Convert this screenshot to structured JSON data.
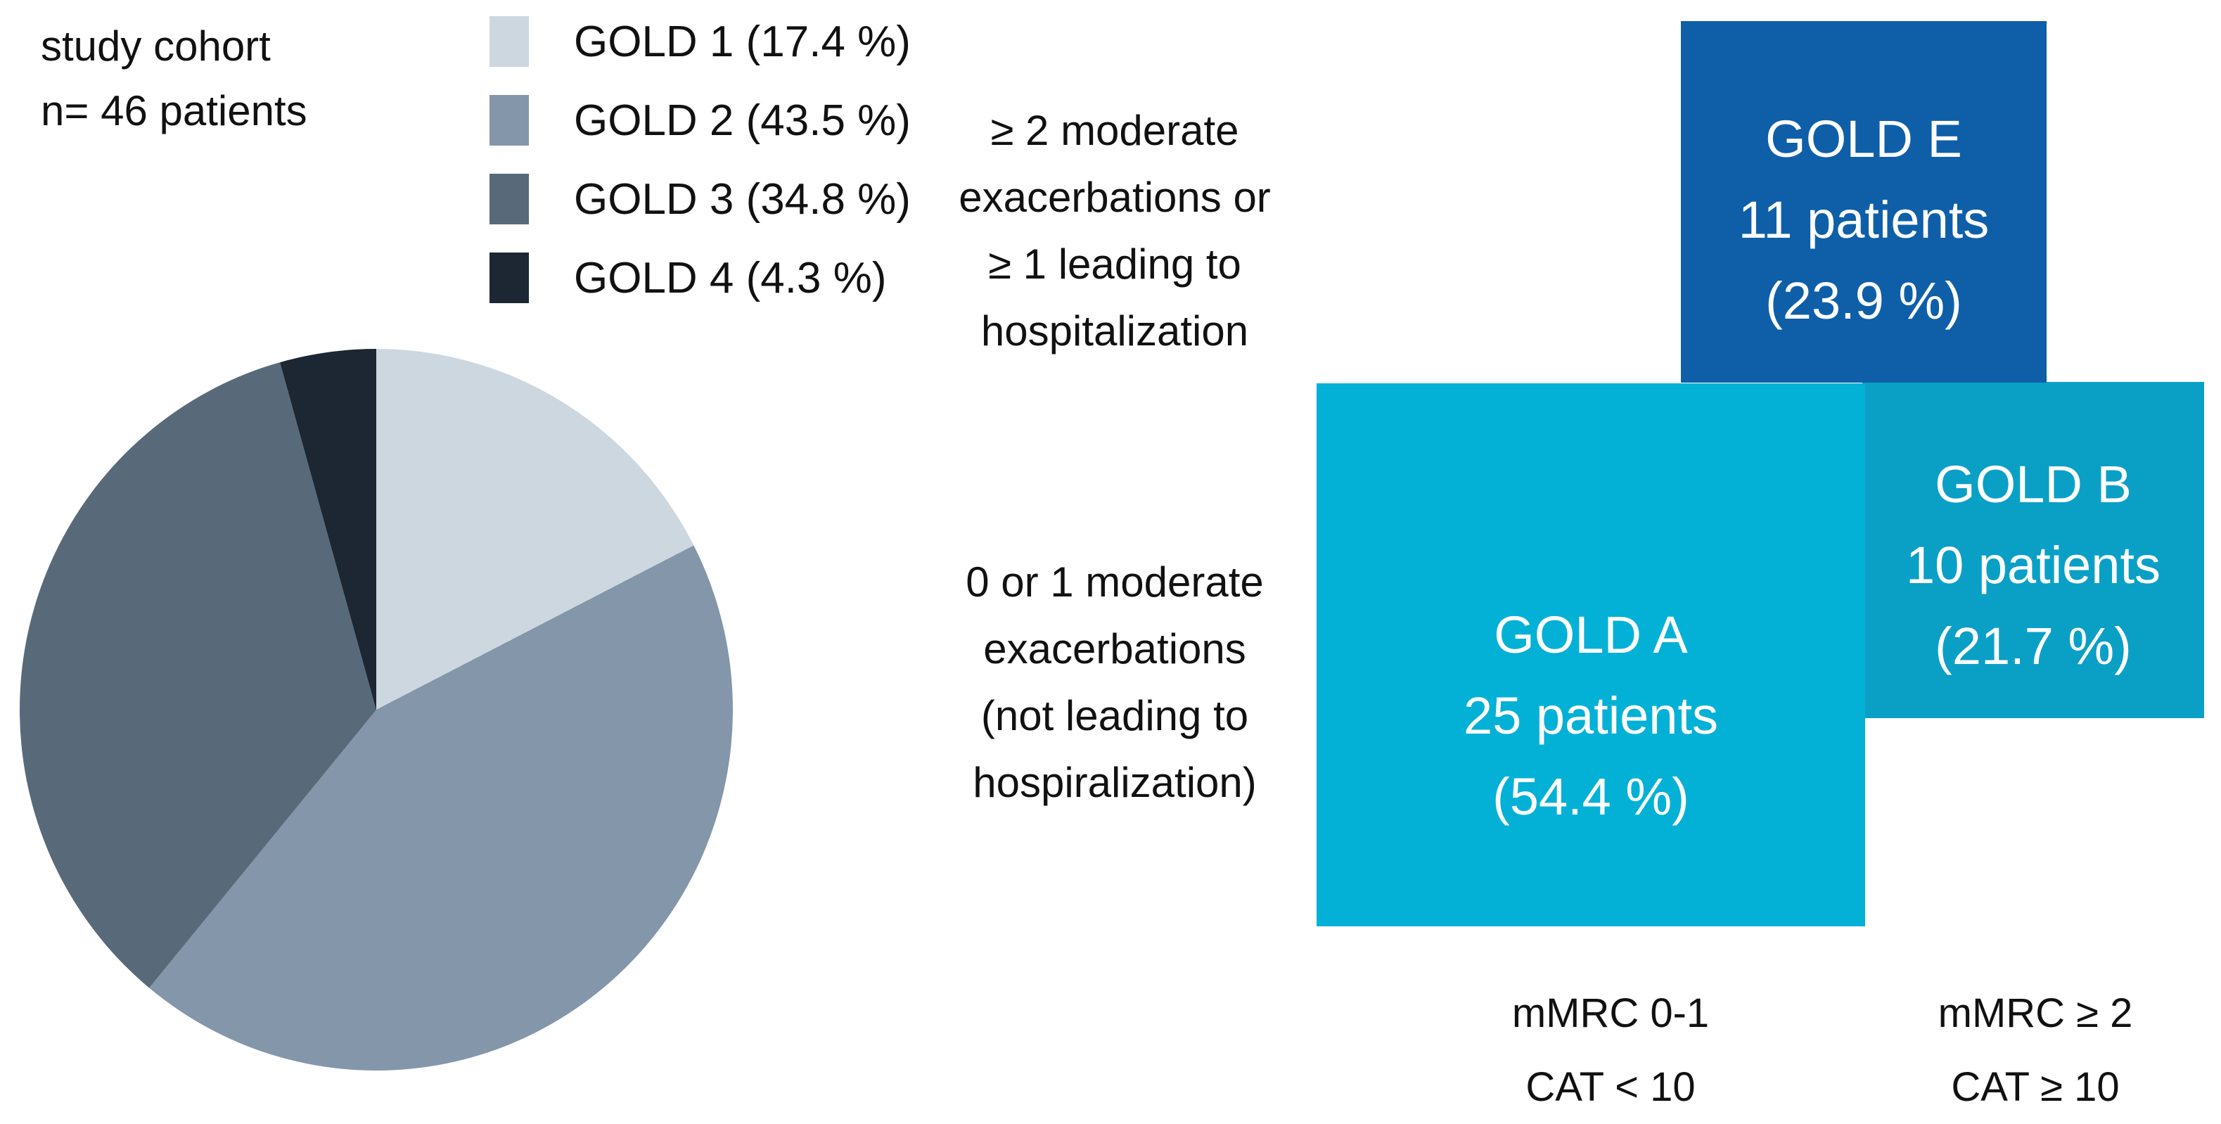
{
  "cohort": {
    "line1": "study cohort",
    "line2": "n= 46 patients"
  },
  "legend": [
    {
      "label": "GOLD 1 (17.4 %)",
      "color": "#cdd7e0"
    },
    {
      "label": "GOLD 2 (43.5 %)",
      "color": "#8496a9"
    },
    {
      "label": "GOLD 3 (34.8 %)",
      "color": "#586a7a"
    },
    {
      "label": "GOLD 4 (4.3 %)",
      "color": "#1c2733"
    }
  ],
  "chart_data": {
    "type": "pie",
    "title": "study cohort n= 46 patients",
    "categories": [
      "GOLD 1",
      "GOLD 2",
      "GOLD 3",
      "GOLD 4"
    ],
    "values": [
      17.4,
      43.5,
      34.8,
      4.3
    ],
    "unit": "%",
    "colors": [
      "#cdd7e0",
      "#8496a9",
      "#586a7a",
      "#1c2733"
    ],
    "start_angle_deg": 0,
    "direction": "clockwise",
    "legend_position": "top-left",
    "n_total_patients": 46
  },
  "annotations": {
    "exacerbation_high": [
      "≥ 2 moderate",
      "exacerbations or",
      "≥ 1 leading to",
      "hospitalization"
    ],
    "exacerbation_low": [
      "0 or 1 moderate",
      "exacerbations",
      "(not leading to",
      "hospiralization)"
    ]
  },
  "groups": {
    "gold_e": {
      "name": "GOLD E",
      "patients": "11 patients",
      "percent": "(23.9 %)",
      "color": "#0e5fa8"
    },
    "gold_a": {
      "name": "GOLD A",
      "patients": "25 patients",
      "percent": "(54.4 %)",
      "color": "#04b1d6"
    },
    "gold_b": {
      "name": "GOLD B",
      "patients": "10 patients",
      "percent": "(21.7 %)",
      "color": "#0aa0c6"
    }
  },
  "symptom_axis": {
    "low": [
      "mMRC 0-1",
      "CAT < 10"
    ],
    "high": [
      "mMRC ≥ 2",
      "CAT ≥ 10"
    ]
  }
}
